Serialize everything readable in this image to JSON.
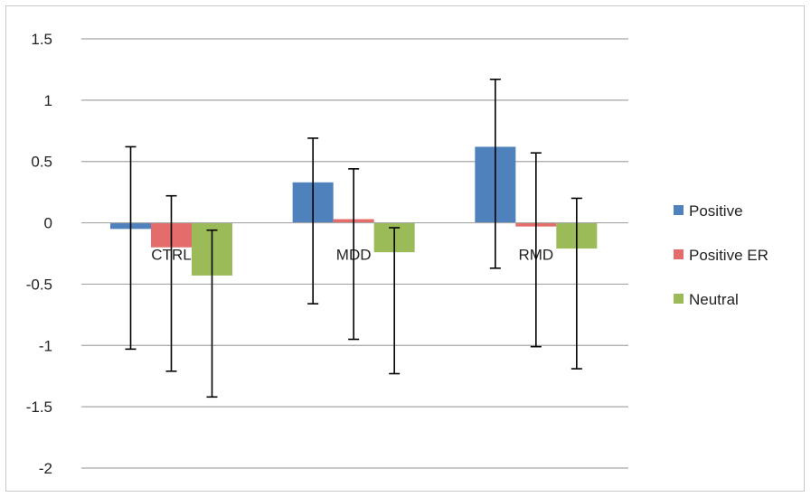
{
  "chart_data": {
    "type": "bar",
    "categories": [
      "CTRL",
      "MDD",
      "RMD"
    ],
    "series": [
      {
        "name": "Positive",
        "color": "#4f81bd",
        "values": [
          -0.05,
          0.33,
          0.62
        ],
        "error_low": [
          -1.03,
          -0.66,
          -0.37
        ],
        "error_high": [
          0.62,
          0.69,
          1.17
        ]
      },
      {
        "name": "Positive ER",
        "color": "#e46c6a",
        "values": [
          -0.2,
          0.03,
          -0.03
        ],
        "error_low": [
          -1.21,
          -0.95,
          -1.01
        ],
        "error_high": [
          0.22,
          0.44,
          0.57
        ]
      },
      {
        "name": "Neutral",
        "color": "#9bbb59",
        "values": [
          -0.43,
          -0.24,
          -0.21
        ],
        "error_low": [
          -1.42,
          -1.23,
          -1.19
        ],
        "error_high": [
          -0.06,
          -0.04,
          0.2
        ]
      }
    ],
    "ylim": [
      -2,
      1.5
    ],
    "yticks": [
      "1.5",
      "1",
      "0.5",
      "0",
      "-0.5",
      "-1",
      "-1.5",
      "-2"
    ],
    "ytick_values": [
      1.5,
      1,
      0.5,
      0,
      -0.5,
      -1,
      -1.5,
      -2
    ],
    "grid": true,
    "legend_position": "right",
    "title": "",
    "xlabel": "",
    "ylabel": ""
  }
}
